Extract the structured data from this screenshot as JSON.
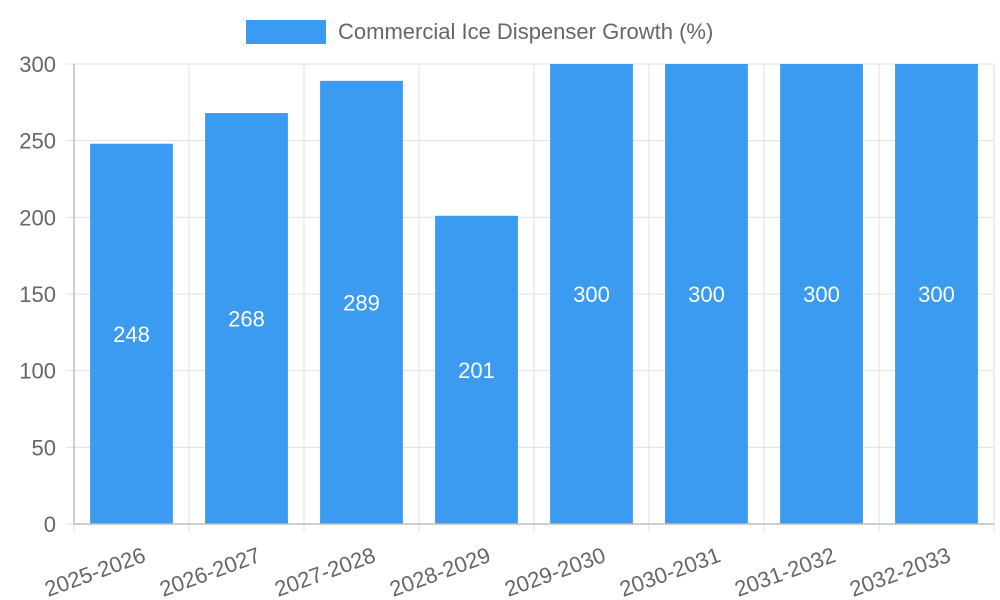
{
  "chart_data": {
    "type": "bar",
    "categories": [
      "2025-2026",
      "2026-2027",
      "2027-2028",
      "2028-2029",
      "2029-2030",
      "2030-2031",
      "2031-2032",
      "2032-2033"
    ],
    "series": [
      {
        "name": "Commercial Ice Dispenser Growth (%)",
        "values": [
          248,
          268,
          289,
          201,
          300,
          300,
          300,
          300
        ],
        "color": "#3a9bf0"
      }
    ],
    "ylim": [
      0,
      300
    ],
    "yticks": [
      0,
      50,
      100,
      150,
      200,
      250,
      300
    ],
    "grid": true,
    "legend_position": "top",
    "data_labels": true,
    "tick_label_color": "#666666"
  }
}
